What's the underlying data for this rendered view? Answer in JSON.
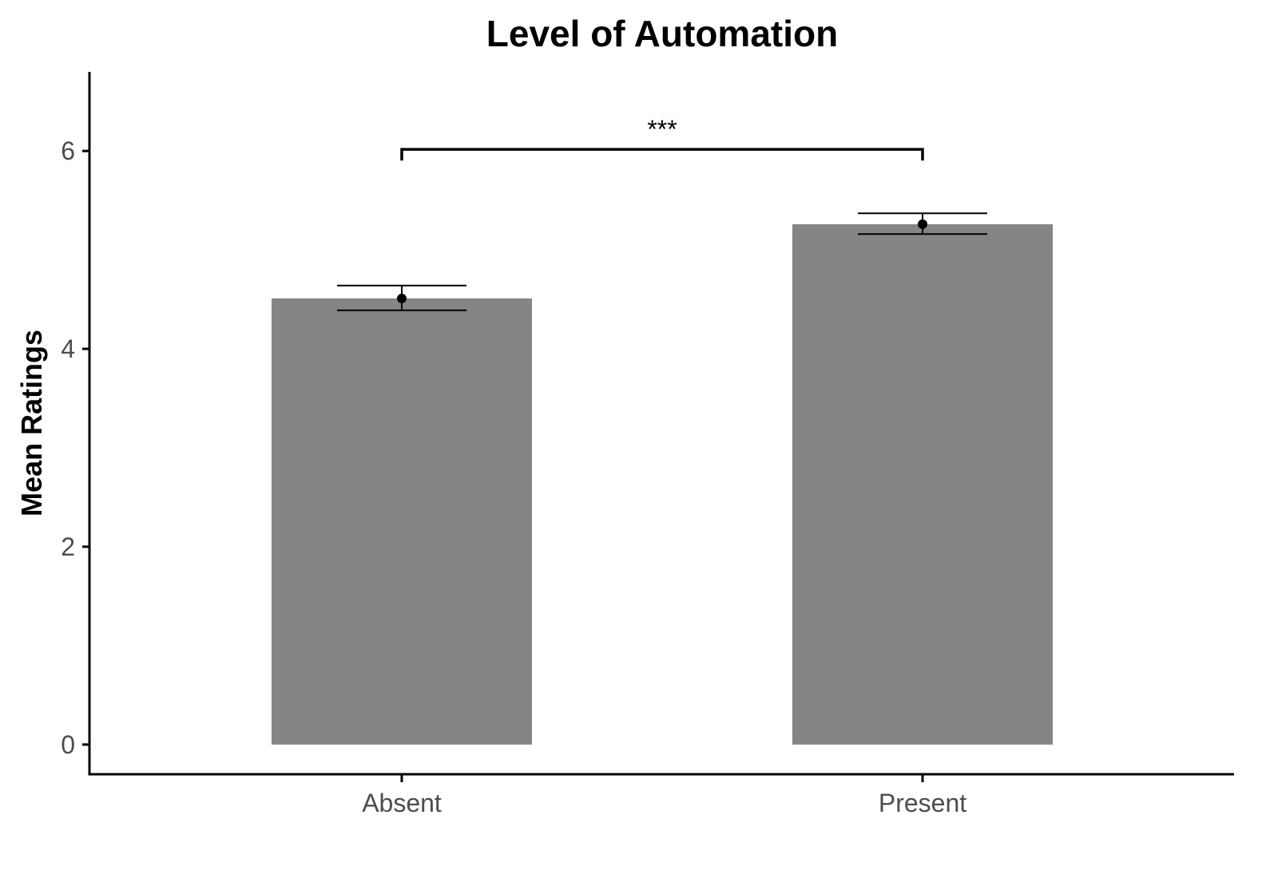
{
  "chart_data": {
    "type": "bar",
    "title": "Level of Automation",
    "xlabel": "",
    "ylabel": "Mean Ratings",
    "categories": [
      "Absent",
      "Present"
    ],
    "values": [
      4.51,
      5.26
    ],
    "error_bars": [
      {
        "low": 4.39,
        "high": 4.64
      },
      {
        "low": 5.16,
        "high": 5.37
      }
    ],
    "ylim": [
      -0.3,
      6.8
    ],
    "yticks": [
      0,
      2,
      4,
      6
    ],
    "grid": false,
    "legend": "none",
    "bar_color": "#858585",
    "significance": {
      "label": "***",
      "from": "Absent",
      "to": "Present",
      "y": 6.0
    }
  }
}
